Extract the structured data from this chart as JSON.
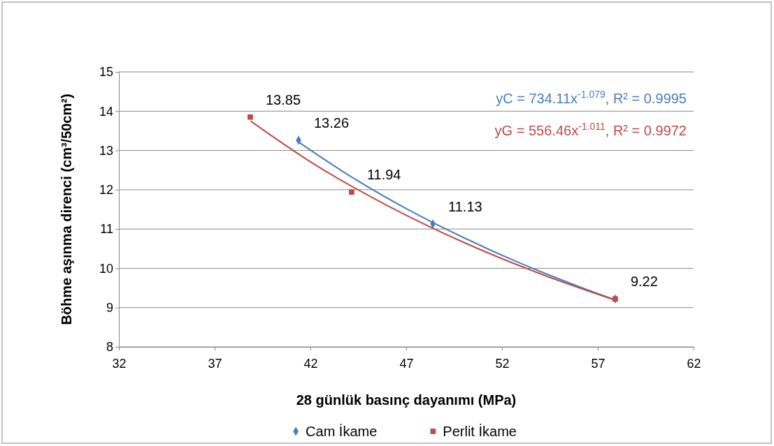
{
  "chart_data": {
    "type": "scatter",
    "xlabel": "28 günlük basınç dayanımı (MPa)",
    "ylabel": "Böhme aşınma direnci (cm³/50cm²)",
    "xlim": [
      32,
      62
    ],
    "xticks": [
      32,
      37,
      42,
      47,
      52,
      57,
      62
    ],
    "ylim": [
      8,
      15
    ],
    "yticks": [
      8,
      9,
      10,
      11,
      12,
      13,
      14,
      15
    ],
    "grid": "y",
    "legend": "bottom",
    "series": [
      {
        "name": "Cam İkame",
        "color": "#4a7ebb",
        "marker": "diamond",
        "x": [
          41.38,
          48.39,
          57.91
        ],
        "values": [
          13.26,
          11.13,
          9.22
        ],
        "value_labels": [
          "13.26",
          "11.13",
          "9.22"
        ]
      },
      {
        "name": "Perlit İkame",
        "color": "#be4b48",
        "marker": "square",
        "x": [
          38.86,
          44.15,
          57.91
        ],
        "values": [
          13.85,
          11.94,
          9.22
        ],
        "value_labels": [
          "13.85",
          "11.94",
          null
        ]
      },
      {
        "type": "line",
        "color": "#4a7ebb",
        "marker": "none",
        "x": [
          41.4,
          44,
          47,
          50,
          53,
          56,
          57.9
        ],
        "values": [
          13.21,
          12.37,
          11.52,
          10.78,
          10.12,
          9.54,
          9.2
        ]
      },
      {
        "type": "line",
        "color": "#be4b48",
        "marker": "none",
        "x": [
          38.9,
          42,
          46,
          50,
          54,
          57.9
        ],
        "values": [
          13.74,
          12.71,
          11.6,
          10.66,
          9.86,
          9.19
        ]
      }
    ],
    "annotations": [
      "yC = 734.11x$^{-1.079}$,  R² = 0.9995",
      "yG = 556.46x$^{-1.011}$,  R² = 0.9972"
    ]
  }
}
